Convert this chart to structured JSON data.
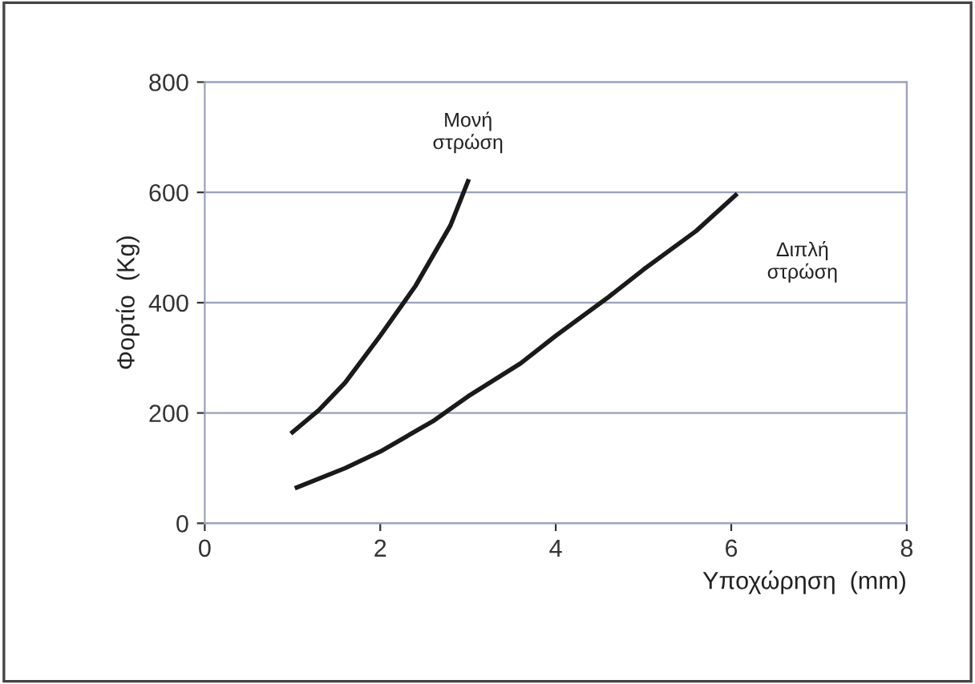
{
  "chart_data": {
    "type": "line",
    "xlabel": "Υποχώρηση  (mm)",
    "ylabel": "Φορτίο  (Kg)",
    "xlim": [
      0,
      8
    ],
    "xticks": [
      0,
      2,
      4,
      6,
      8
    ],
    "ylim": [
      0,
      800
    ],
    "yticks": [
      0,
      200,
      400,
      600,
      800
    ],
    "grid": "y",
    "legend": false,
    "marker": "none",
    "line_style": "solid",
    "series": [
      {
        "name": "Μονή\nστρώση",
        "color": "#1a1a1a",
        "x": [
          1.0,
          1.3,
          1.6,
          2.0,
          2.4,
          2.8,
          3.0
        ],
        "values": [
          165,
          205,
          255,
          340,
          430,
          540,
          620
        ]
      },
      {
        "name": "Διπλή\nστρώση",
        "color": "#1a1a1a",
        "x": [
          1.05,
          1.6,
          2.0,
          2.6,
          3.0,
          3.6,
          4.0,
          4.6,
          5.0,
          5.6,
          6.05
        ],
        "values": [
          65,
          100,
          130,
          185,
          230,
          290,
          340,
          410,
          460,
          530,
          595
        ]
      }
    ]
  }
}
